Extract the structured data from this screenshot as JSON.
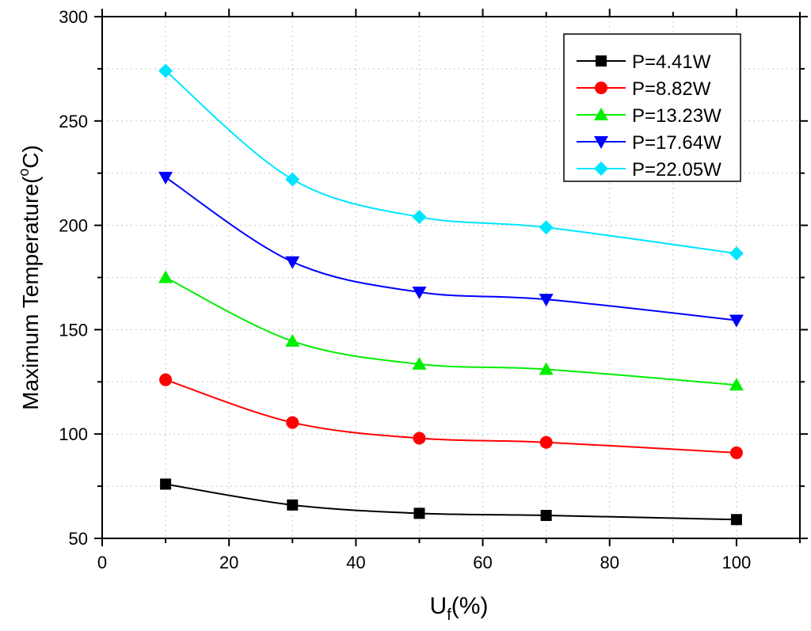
{
  "chart_data": {
    "type": "line",
    "xlabel": {
      "main": "U",
      "sub": "f",
      "rest": "(%)"
    },
    "ylabel": {
      "main": "Maximum Temperature(",
      "sup": "o",
      "rest": "C)"
    },
    "xlim": [
      0,
      110
    ],
    "ylim": [
      50,
      300
    ],
    "xticks": [
      0,
      20,
      40,
      60,
      80,
      100
    ],
    "yticks": [
      50,
      100,
      150,
      200,
      250,
      300
    ],
    "x": [
      10,
      30,
      50,
      70,
      100
    ],
    "grid": true,
    "legend_position": "top-right",
    "series": [
      {
        "name": "P=4.41W",
        "color": "#000000",
        "marker": "square",
        "values": [
          76,
          66,
          62,
          61,
          59
        ]
      },
      {
        "name": "P=8.82W",
        "color": "#ff0000",
        "marker": "circle",
        "values": [
          126,
          105.5,
          98,
          96,
          91
        ]
      },
      {
        "name": "P=13.23W",
        "color": "#00ee00",
        "marker": "triangle-up",
        "values": [
          175,
          144.5,
          133.5,
          131,
          123.5
        ]
      },
      {
        "name": "P=17.64W",
        "color": "#0000ff",
        "marker": "triangle-down",
        "values": [
          223,
          182.5,
          168,
          164.5,
          154.5
        ]
      },
      {
        "name": "P=22.05W",
        "color": "#00e5ff",
        "marker": "diamond",
        "values": [
          274,
          222,
          204,
          199,
          186.5
        ]
      }
    ]
  }
}
